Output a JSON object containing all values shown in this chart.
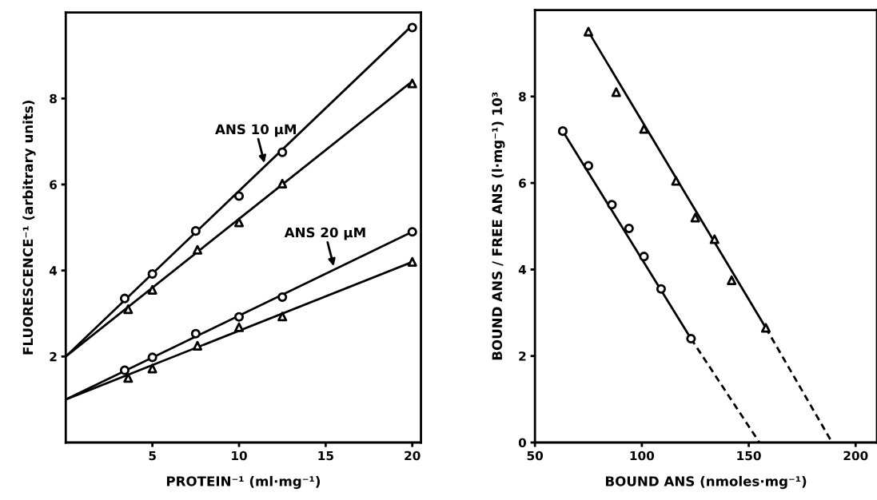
{
  "chart_data": [
    {
      "type": "line",
      "xlabel": "PROTEIN⁻¹ (ml·mg⁻¹)",
      "ylabel": "FLUORESCENCE⁻¹ (arbitrary units)",
      "xlim": [
        0,
        20.5
      ],
      "ylim": [
        0,
        10
      ],
      "xticks": [
        5,
        10,
        15,
        20
      ],
      "yticks": [
        2,
        4,
        6,
        8
      ],
      "grid": false,
      "legend": false,
      "annotations": [
        {
          "text": "ANS 10 μM",
          "x": 11.5,
          "y": 6.45
        },
        {
          "text": "ANS 20 μM",
          "x": 15.5,
          "y": 4.05
        }
      ],
      "series": [
        {
          "color": "#000000",
          "marker": "none",
          "line_style": "solid",
          "x": [
            0,
            20
          ],
          "values": [
            2,
            9.7
          ]
        },
        {
          "color": "#000000",
          "marker": "none",
          "line_style": "solid",
          "x": [
            0,
            20
          ],
          "values": [
            2,
            8.4
          ]
        },
        {
          "color": "#000000",
          "marker": "none",
          "line_style": "solid",
          "x": [
            0,
            20
          ],
          "values": [
            1,
            4.9
          ]
        },
        {
          "color": "#000000",
          "marker": "none",
          "line_style": "solid",
          "x": [
            0,
            20
          ],
          "values": [
            1,
            4.2
          ]
        },
        {
          "type": "scatter",
          "color": "#000000",
          "marker": "circle",
          "x": [
            3.4,
            5,
            7.5,
            10,
            12.5,
            20
          ],
          "values": [
            3.35,
            3.92,
            4.92,
            5.73,
            6.75,
            9.65
          ]
        },
        {
          "type": "scatter",
          "color": "#000000",
          "marker": "triangle",
          "x": [
            3.6,
            5,
            7.6,
            10,
            12.5,
            20
          ],
          "values": [
            3.1,
            3.55,
            4.48,
            5.12,
            6.02,
            8.35
          ]
        },
        {
          "type": "scatter",
          "color": "#000000",
          "marker": "circle",
          "x": [
            3.4,
            5,
            7.5,
            10,
            12.5,
            20
          ],
          "values": [
            1.68,
            1.98,
            2.53,
            2.92,
            3.38,
            4.9
          ]
        },
        {
          "type": "scatter",
          "color": "#000000",
          "marker": "triangle",
          "x": [
            3.6,
            5,
            7.6,
            10,
            12.5,
            20
          ],
          "values": [
            1.5,
            1.72,
            2.25,
            2.68,
            2.93,
            4.2
          ]
        }
      ]
    },
    {
      "type": "line",
      "xlabel": "BOUND ANS (nmoles·mg⁻¹)",
      "ylabel": "BOUND ANS / FREE ANS (l·mg⁻¹) 10³",
      "xlim": [
        50,
        210
      ],
      "ylim": [
        0,
        10
      ],
      "xticks": [
        50,
        100,
        150,
        200
      ],
      "yticks": [
        0,
        2,
        4,
        6,
        8
      ],
      "grid": false,
      "legend": false,
      "series": [
        {
          "color": "#000000",
          "marker": "none",
          "line_style": "solid",
          "x": [
            63,
            123
          ],
          "values": [
            7.2,
            2.4
          ]
        },
        {
          "color": "#000000",
          "marker": "none",
          "line_style": "dashed",
          "x": [
            123,
            155
          ],
          "values": [
            2.4,
            0
          ]
        },
        {
          "color": "#000000",
          "marker": "none",
          "line_style": "solid",
          "x": [
            75,
            158
          ],
          "values": [
            9.5,
            2.65
          ]
        },
        {
          "color": "#000000",
          "marker": "none",
          "line_style": "dashed",
          "x": [
            158,
            189
          ],
          "values": [
            2.65,
            0
          ]
        },
        {
          "type": "scatter",
          "color": "#000000",
          "marker": "circle",
          "x": [
            63,
            75,
            86,
            94,
            101,
            109,
            123
          ],
          "values": [
            7.2,
            6.4,
            5.5,
            4.95,
            4.3,
            3.55,
            2.4
          ]
        },
        {
          "type": "scatter",
          "color": "#000000",
          "marker": "triangle",
          "x": [
            75,
            88,
            101,
            116,
            125,
            134,
            142,
            158
          ],
          "values": [
            9.5,
            8.1,
            7.25,
            6.05,
            5.2,
            4.7,
            3.75,
            2.65
          ]
        }
      ]
    }
  ]
}
